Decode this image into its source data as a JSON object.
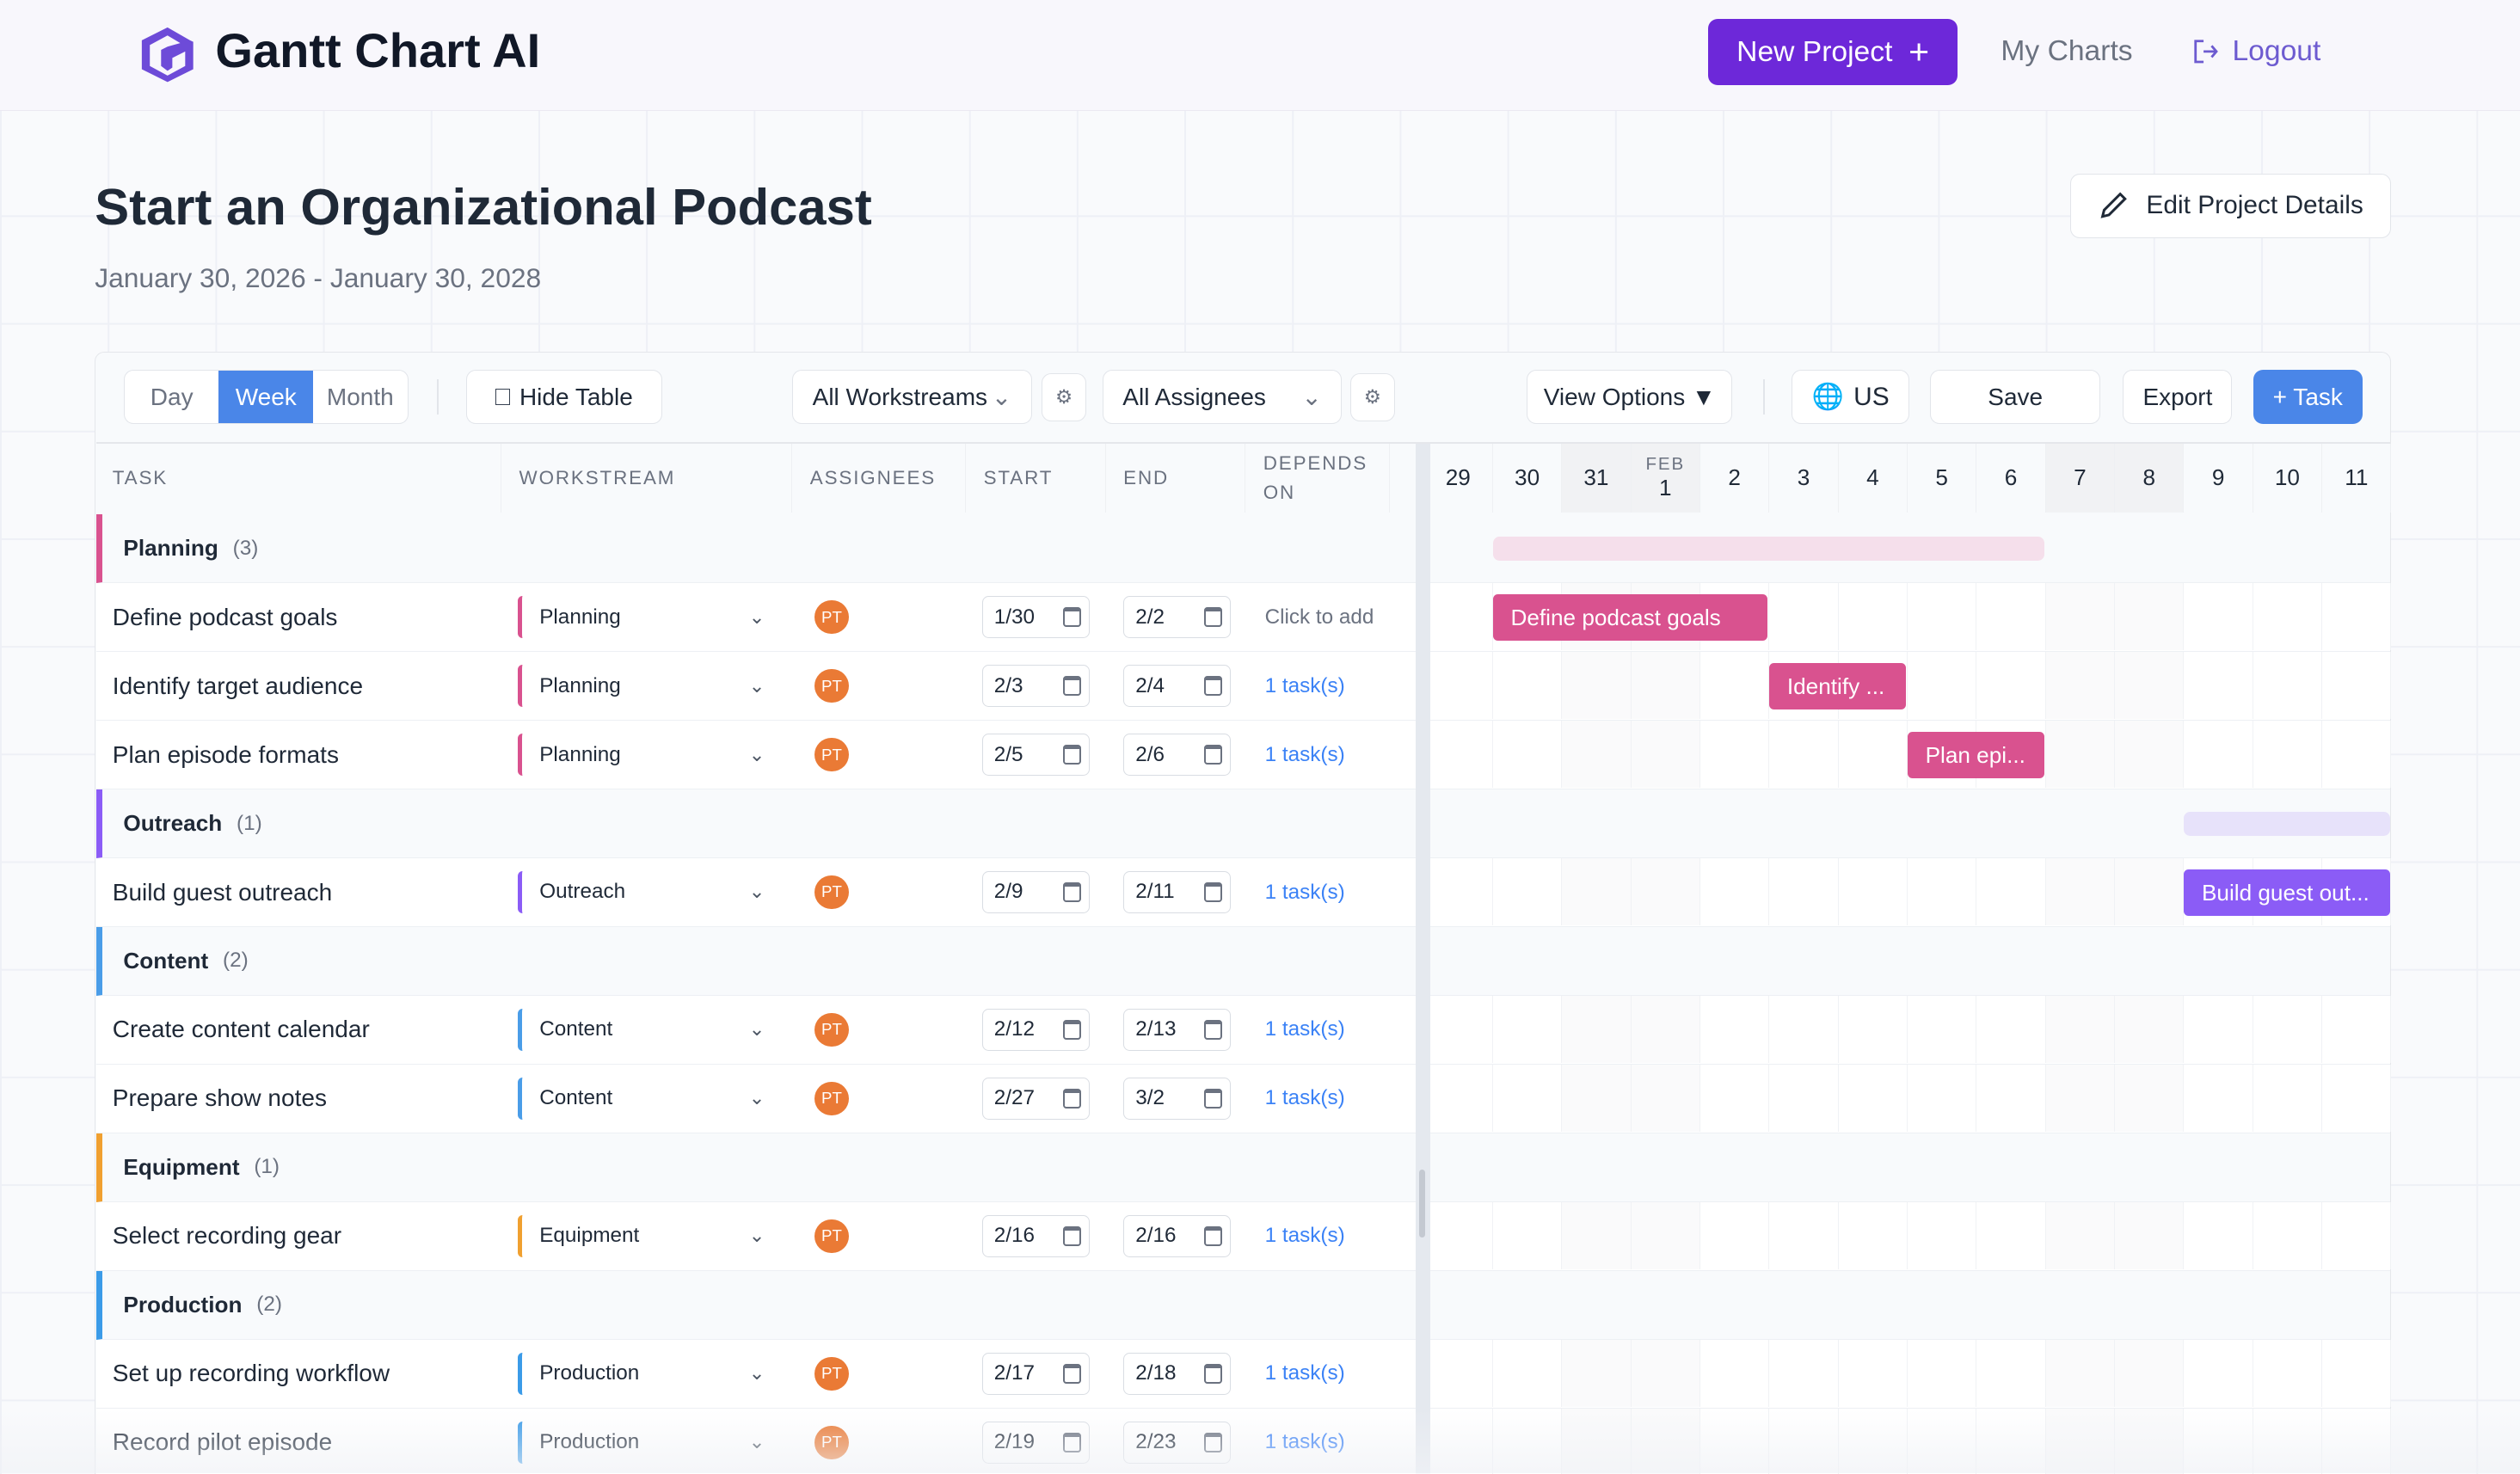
{
  "header": {
    "brand": "Gantt Chart AI",
    "new_project": "New Project",
    "new_project_icon": "plus-icon",
    "my_charts": "My Charts",
    "logout": "Logout",
    "brand_color": "#6d28d9"
  },
  "project": {
    "title": "Start an Organizational Podcast",
    "dates": "January 30, 2026 - January 30, 2028",
    "edit": "Edit Project Details"
  },
  "toolbar": {
    "views": [
      "Day",
      "Week",
      "Month"
    ],
    "active_view": "Week",
    "hide_table": "Hide Table",
    "workstreams": "All Workstreams",
    "assignees": "All Assignees",
    "view_options": "View Options ▼",
    "locale": "US",
    "save": "Save",
    "export": "Export",
    "add_task": "+ Task",
    "accent": "#4a86e8"
  },
  "table": {
    "headers": [
      "TASK",
      "WORKSTREAM",
      "ASSIGNEES",
      "START",
      "END",
      "DEPENDS ON"
    ]
  },
  "timeline": {
    "columns": [
      {
        "key": "1/29",
        "label": "29"
      },
      {
        "key": "1/30",
        "label": "30"
      },
      {
        "key": "1/31",
        "label": "31",
        "weekend": true
      },
      {
        "key": "2/1",
        "label": "1",
        "month": "FEB",
        "weekend": true
      },
      {
        "key": "2/2",
        "label": "2"
      },
      {
        "key": "2/3",
        "label": "3"
      },
      {
        "key": "2/4",
        "label": "4"
      },
      {
        "key": "2/5",
        "label": "5"
      },
      {
        "key": "2/6",
        "label": "6"
      },
      {
        "key": "2/7",
        "label": "7",
        "weekend": true
      },
      {
        "key": "2/8",
        "label": "8",
        "weekend": true
      },
      {
        "key": "2/9",
        "label": "9"
      },
      {
        "key": "2/10",
        "label": "10"
      },
      {
        "key": "2/11",
        "label": "11"
      }
    ]
  },
  "groups": [
    {
      "name": "Planning",
      "count": "(3)",
      "color": "#d9528f",
      "light": "#f5dfeb",
      "start": "1/30",
      "end": "2/6",
      "tasks": [
        {
          "name": "Define podcast goals",
          "bar": "Define podcast goals",
          "ws": "Planning",
          "assignee": "PT",
          "start": "1/30",
          "end": "2/2",
          "depends": "Click to add"
        },
        {
          "name": "Identify target audience",
          "bar": "Identify ...",
          "ws": "Planning",
          "assignee": "PT",
          "start": "2/3",
          "end": "2/4",
          "depends": "1 task(s)"
        },
        {
          "name": "Plan episode formats",
          "bar": "Plan epi...",
          "ws": "Planning",
          "assignee": "PT",
          "start": "2/5",
          "end": "2/6",
          "depends": "1 task(s)"
        }
      ]
    },
    {
      "name": "Outreach",
      "count": "(1)",
      "color": "#8b5cf6",
      "light": "#e7e2fa",
      "start": "2/9",
      "end": "2/11",
      "tasks": [
        {
          "name": "Build guest outreach",
          "bar": "Build guest out...",
          "ws": "Outreach",
          "assignee": "PT",
          "start": "2/9",
          "end": "2/11",
          "depends": "1 task(s)"
        }
      ]
    },
    {
      "name": "Content",
      "count": "(2)",
      "color": "#4a9de8",
      "light": "#dcebfa",
      "tasks": [
        {
          "name": "Create content calendar",
          "ws": "Content",
          "assignee": "PT",
          "start": "2/12",
          "end": "2/13",
          "depends": "1 task(s)"
        },
        {
          "name": "Prepare show notes",
          "ws": "Content",
          "assignee": "PT",
          "start": "2/27",
          "end": "3/2",
          "depends": "1 task(s)"
        }
      ]
    },
    {
      "name": "Equipment",
      "count": "(1)",
      "color": "#f0a030",
      "light": "#fcebd0",
      "tasks": [
        {
          "name": "Select recording gear",
          "ws": "Equipment",
          "assignee": "PT",
          "start": "2/16",
          "end": "2/16",
          "depends": "1 task(s)"
        }
      ]
    },
    {
      "name": "Production",
      "count": "(2)",
      "color": "#3b9be8",
      "light": "#dcebfa",
      "tasks": [
        {
          "name": "Set up recording workflow",
          "ws": "Production",
          "assignee": "PT",
          "start": "2/17",
          "end": "2/18",
          "depends": "1 task(s)"
        },
        {
          "name": "Record pilot episode",
          "ws": "Production",
          "assignee": "PT",
          "start": "2/19",
          "end": "2/23",
          "depends": "1 task(s)"
        }
      ]
    }
  ]
}
